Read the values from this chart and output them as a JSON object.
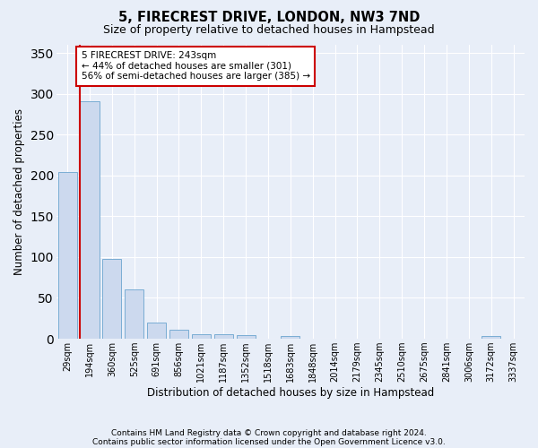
{
  "title": "5, FIRECREST DRIVE, LONDON, NW3 7ND",
  "subtitle": "Size of property relative to detached houses in Hampstead",
  "xlabel": "Distribution of detached houses by size in Hampstead",
  "ylabel": "Number of detached properties",
  "bar_color": "#ccd9ee",
  "bar_edgecolor": "#7aadd4",
  "background_color": "#e8eef8",
  "plot_bg_color": "#e8eef8",
  "grid_color": "#ffffff",
  "bins": [
    "29sqm",
    "194sqm",
    "360sqm",
    "525sqm",
    "691sqm",
    "856sqm",
    "1021sqm",
    "1187sqm",
    "1352sqm",
    "1518sqm",
    "1683sqm",
    "1848sqm",
    "2014sqm",
    "2179sqm",
    "2345sqm",
    "2510sqm",
    "2675sqm",
    "2841sqm",
    "3006sqm",
    "3172sqm",
    "3337sqm"
  ],
  "values": [
    204,
    291,
    98,
    60,
    20,
    11,
    6,
    5,
    4,
    0,
    3,
    0,
    0,
    0,
    0,
    0,
    0,
    0,
    0,
    3,
    0
  ],
  "vline_x": 1.0,
  "annotation_text": "5 FIRECREST DRIVE: 243sqm\n← 44% of detached houses are smaller (301)\n56% of semi-detached houses are larger (385) →",
  "annotation_box_color": "#ffffff",
  "annotation_box_edgecolor": "#cc0000",
  "vline_color": "#cc0000",
  "footer1": "Contains HM Land Registry data © Crown copyright and database right 2024.",
  "footer2": "Contains public sector information licensed under the Open Government Licence v3.0.",
  "ylim": [
    0,
    360
  ],
  "yticks": [
    0,
    50,
    100,
    150,
    200,
    250,
    300,
    350
  ],
  "title_fontsize": 10.5,
  "subtitle_fontsize": 9,
  "tick_fontsize": 7,
  "annot_fontsize": 7.5,
  "ylabel_fontsize": 8.5,
  "xlabel_fontsize": 8.5,
  "footer_fontsize": 6.5
}
